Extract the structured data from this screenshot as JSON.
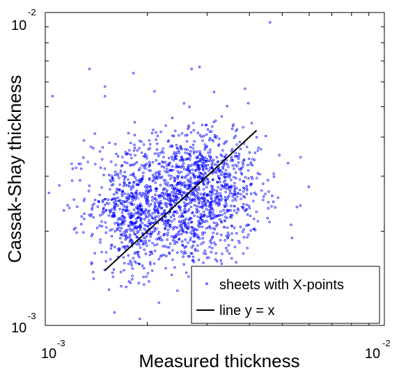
{
  "chart_data": {
    "type": "scatter",
    "title": "",
    "xlabel": "Measured thickness",
    "ylabel": "Cassak-Shay thickness",
    "x_scale": "log",
    "y_scale": "log",
    "xlim": [
      0.001,
      0.01
    ],
    "ylim": [
      0.001,
      0.01
    ],
    "x_ticks": [
      {
        "value": 0.001,
        "base": "10",
        "exp": "-3"
      },
      {
        "value": 0.01,
        "base": "10",
        "exp": "-2"
      }
    ],
    "y_ticks": [
      {
        "value": 0.001,
        "base": "10",
        "exp": "-3"
      },
      {
        "value": 0.01,
        "base": "10",
        "exp": "-2"
      }
    ],
    "grid": false,
    "legend_position": "bottom-right",
    "colors": {
      "scatter": "#0000ff",
      "line": "#000000"
    },
    "series": [
      {
        "name": "sheets with X-points",
        "type": "scatter",
        "clusters": [
          {
            "center": [
              0.00245,
              0.0025
            ],
            "spread": [
              0.22,
              0.19
            ],
            "count": 1300
          },
          {
            "center": [
              0.0018,
              0.0022
            ],
            "spread": [
              0.07,
              0.17
            ],
            "count": 260
          },
          {
            "center": [
              0.0031,
              0.003
            ],
            "spread": [
              0.13,
              0.17
            ],
            "count": 320
          }
        ],
        "points": [
          [
            0.00135,
            0.0066
          ],
          [
            0.00105,
            0.0054
          ],
          [
            0.00182,
            0.0064
          ],
          [
            0.0027,
            0.0066
          ],
          [
            0.0046,
            0.0093
          ],
          [
            0.0015,
            0.0054
          ],
          [
            0.0013,
            0.0039
          ],
          [
            0.0012,
            0.0029
          ],
          [
            0.0011,
            0.0028
          ],
          [
            0.00285,
            0.0067
          ],
          [
            0.0052,
            0.0033
          ],
          [
            0.0049,
            0.0035
          ],
          [
            0.0016,
            0.0011
          ],
          [
            0.0019,
            0.00105
          ],
          [
            0.0031,
            0.0013
          ],
          [
            0.0015,
            0.0058
          ],
          [
            0.0021,
            0.0056
          ],
          [
            0.0014,
            0.0041
          ],
          [
            0.0013,
            0.0025
          ],
          [
            0.0014,
            0.0017
          ]
        ]
      },
      {
        "name": "line y = x",
        "type": "line",
        "x": [
          0.0015,
          0.0042
        ],
        "y": [
          0.0015,
          0.0042
        ]
      }
    ]
  }
}
